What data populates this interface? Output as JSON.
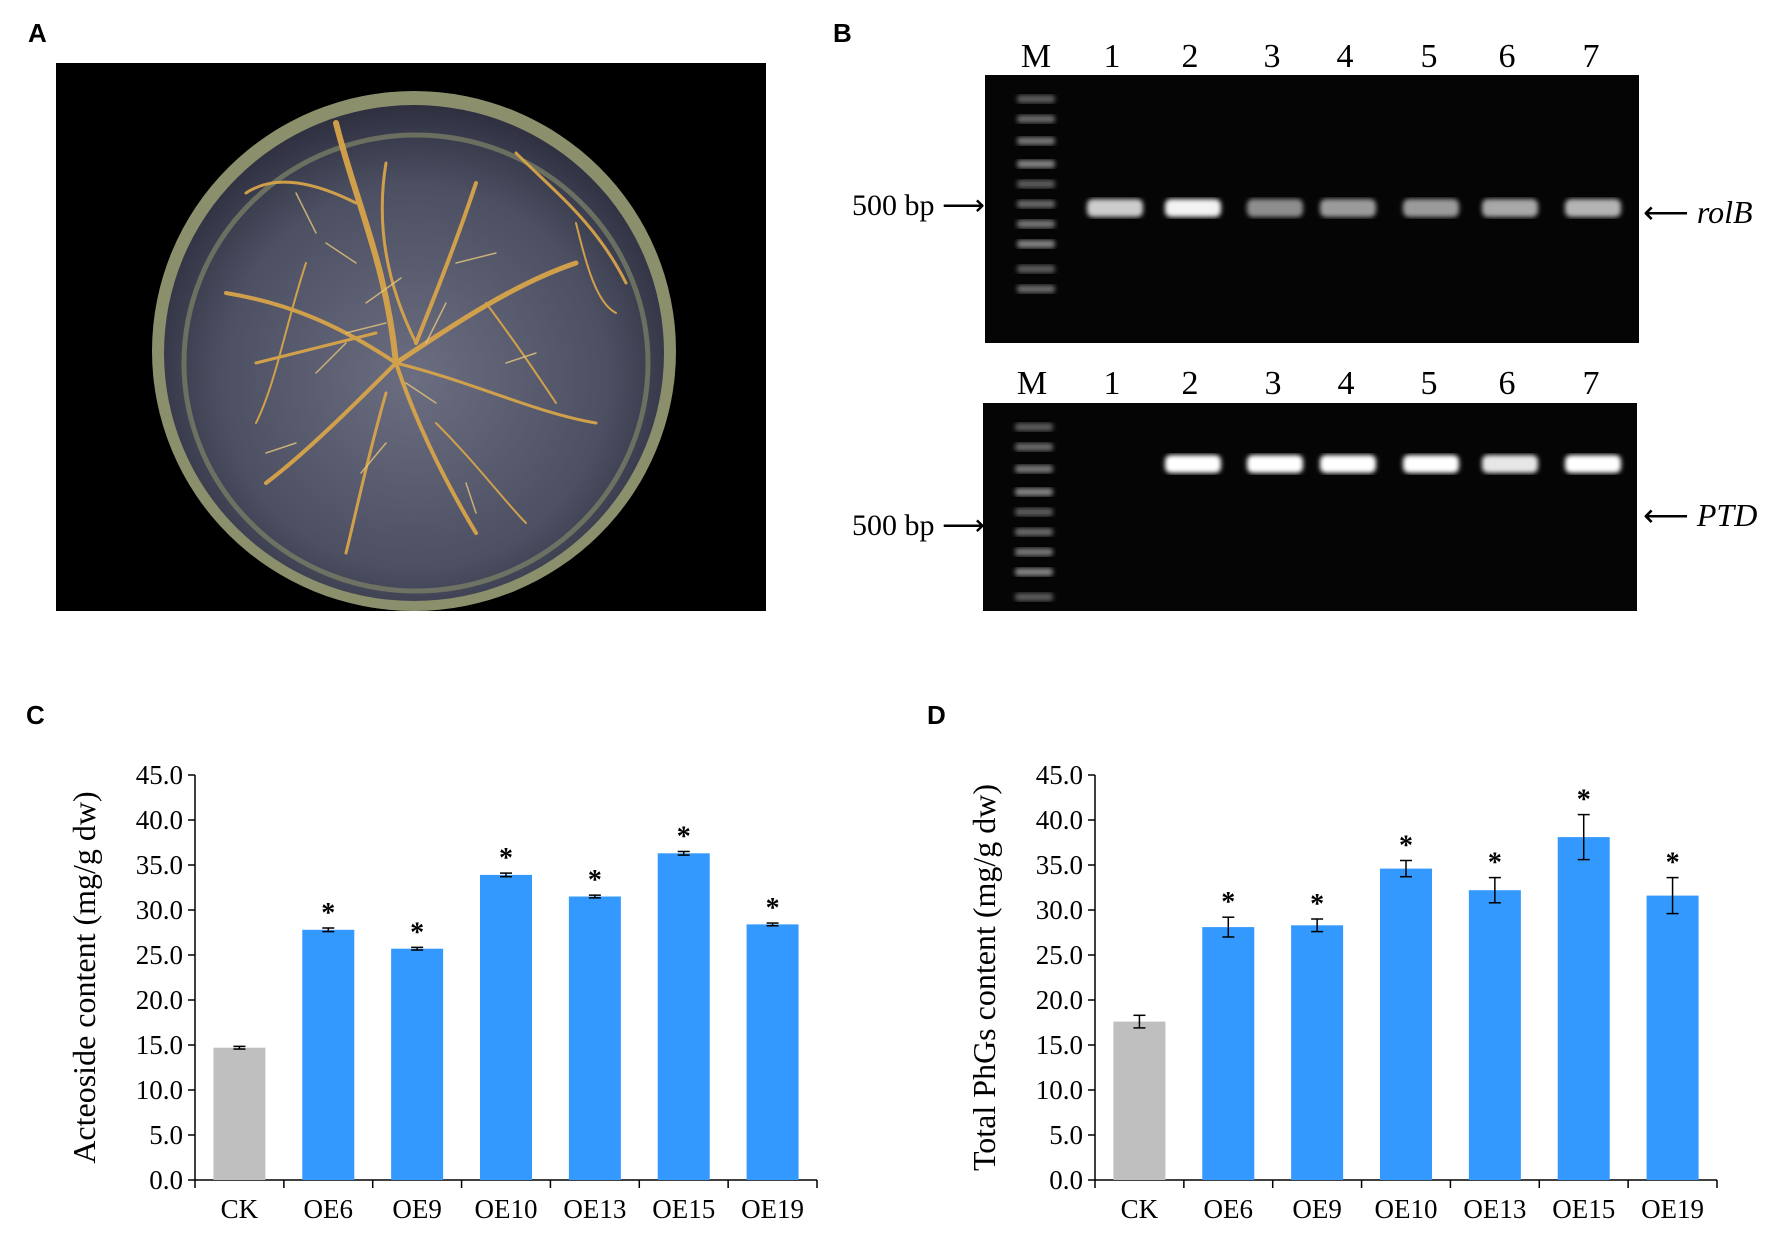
{
  "panels": {
    "a": {
      "letter": "A"
    },
    "b": {
      "letter": "B",
      "lanes": [
        "M",
        "1",
        "2",
        "3",
        "4",
        "5",
        "6",
        "7"
      ],
      "marker_label": "500 bp",
      "gels": [
        {
          "gene": "rolB",
          "band_intensity": [
            0.8,
            0.95,
            0.55,
            0.6,
            0.6,
            0.65,
            0.7
          ]
        },
        {
          "gene": "PTD",
          "band_intensity": [
            0.0,
            1.0,
            1.0,
            1.0,
            1.0,
            0.9,
            1.0
          ]
        }
      ]
    },
    "c": {
      "letter": "C"
    },
    "d": {
      "letter": "D"
    }
  },
  "chart_data": [
    {
      "type": "bar",
      "categories": [
        "CK",
        "OE6",
        "OE9",
        "OE10",
        "OE13",
        "OE15",
        "OE19"
      ],
      "values": [
        14.7,
        27.8,
        25.7,
        33.9,
        31.5,
        36.3,
        28.4
      ],
      "errors": [
        0.15,
        0.2,
        0.15,
        0.2,
        0.15,
        0.2,
        0.15
      ],
      "significant": [
        false,
        true,
        true,
        true,
        true,
        true,
        true
      ],
      "significance_mark": "*",
      "colors": [
        "#bfbfbf",
        "#3399ff",
        "#3399ff",
        "#3399ff",
        "#3399ff",
        "#3399ff",
        "#3399ff"
      ],
      "ylabel": "Acteoside content (mg/g  dw)",
      "yticks": [
        "0.0",
        "5.0",
        "10.0",
        "15.0",
        "20.0",
        "25.0",
        "30.0",
        "35.0",
        "40.0",
        "45.0"
      ],
      "ylim": [
        0,
        45
      ]
    },
    {
      "type": "bar",
      "categories": [
        "CK",
        "OE6",
        "OE9",
        "OE10",
        "OE13",
        "OE15",
        "OE19"
      ],
      "values": [
        17.6,
        28.1,
        28.3,
        34.6,
        32.2,
        38.1,
        31.6
      ],
      "errors": [
        0.7,
        1.1,
        0.7,
        0.9,
        1.4,
        2.5,
        2.0
      ],
      "significant": [
        false,
        true,
        true,
        true,
        true,
        true,
        true
      ],
      "significance_mark": "*",
      "colors": [
        "#bfbfbf",
        "#3399ff",
        "#3399ff",
        "#3399ff",
        "#3399ff",
        "#3399ff",
        "#3399ff"
      ],
      "ylabel": "Total PhGs content  (mg/g  dw)",
      "yticks": [
        "0.0",
        "5.0",
        "10.0",
        "15.0",
        "20.0",
        "25.0",
        "30.0",
        "35.0",
        "40.0",
        "45.0"
      ],
      "ylim": [
        0,
        45
      ]
    }
  ]
}
